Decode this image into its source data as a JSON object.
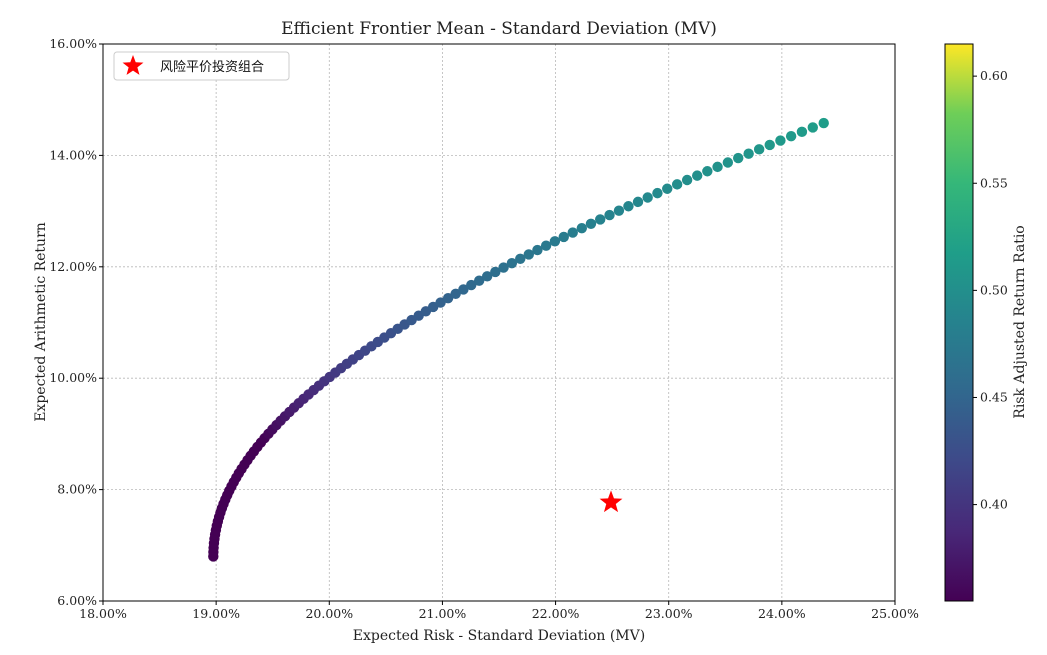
{
  "chart_data": {
    "type": "scatter",
    "title": "Efficient Frontier Mean - Standard Deviation (MV)",
    "xlabel": "Expected Risk - Standard Deviation (MV)",
    "ylabel": "Expected Arithmetic Return",
    "xlim": [
      0.18,
      0.25
    ],
    "ylim": [
      0.06,
      0.16
    ],
    "x_ticks": [
      {
        "value": 0.18,
        "label": "18.00%"
      },
      {
        "value": 0.19,
        "label": "19.00%"
      },
      {
        "value": 0.2,
        "label": "20.00%"
      },
      {
        "value": 0.21,
        "label": "21.00%"
      },
      {
        "value": 0.22,
        "label": "22.00%"
      },
      {
        "value": 0.23,
        "label": "23.00%"
      },
      {
        "value": 0.24,
        "label": "24.00%"
      },
      {
        "value": 0.25,
        "label": "25.00%"
      }
    ],
    "y_ticks": [
      {
        "value": 0.06,
        "label": "6.00%"
      },
      {
        "value": 0.08,
        "label": "8.00%"
      },
      {
        "value": 0.1,
        "label": "10.00%"
      },
      {
        "value": 0.12,
        "label": "12.00%"
      },
      {
        "value": 0.14,
        "label": "14.00%"
      },
      {
        "value": 0.16,
        "label": "16.00%"
      }
    ],
    "grid": true,
    "legend": {
      "position": "top-left",
      "entries": [
        {
          "label": "风险平价投资组合",
          "marker": "star",
          "color": "#ff0000"
        }
      ]
    },
    "colorbar": {
      "label": "Risk Adjusted Return Ratio",
      "range": [
        0.355,
        0.615
      ],
      "colormap": "viridis",
      "ticks": [
        {
          "value": 0.4,
          "label": "0.40"
        },
        {
          "value": 0.45,
          "label": "0.45"
        },
        {
          "value": 0.5,
          "label": "0.50"
        },
        {
          "value": 0.55,
          "label": "0.55"
        },
        {
          "value": 0.6,
          "label": "0.60"
        }
      ]
    },
    "frontier": {
      "std_min": 0.18975,
      "std_max": 0.2437,
      "ret_min": 0.068,
      "ret_max": 0.1458,
      "points": 100
    },
    "special_points": [
      {
        "label": "风险平价投资组合",
        "x": 0.2249,
        "y": 0.0777,
        "marker": "star",
        "color": "#ff0000"
      }
    ]
  }
}
